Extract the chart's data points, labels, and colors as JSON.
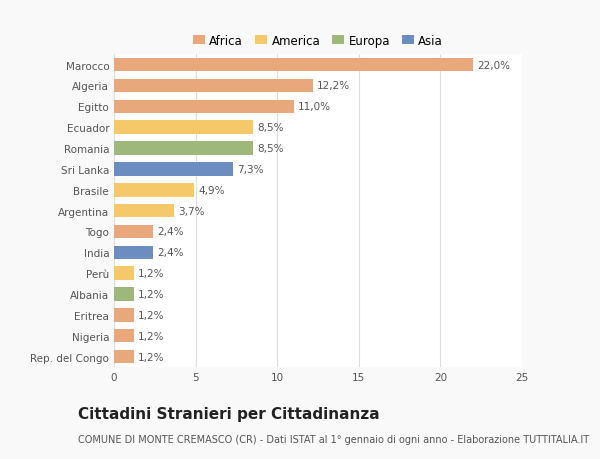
{
  "categories": [
    "Rep. del Congo",
    "Nigeria",
    "Eritrea",
    "Albania",
    "Perù",
    "India",
    "Togo",
    "Argentina",
    "Brasile",
    "Sri Lanka",
    "Romania",
    "Ecuador",
    "Egitto",
    "Algeria",
    "Marocco"
  ],
  "values": [
    1.2,
    1.2,
    1.2,
    1.2,
    1.2,
    2.4,
    2.4,
    3.7,
    4.9,
    7.3,
    8.5,
    8.5,
    11.0,
    12.2,
    22.0
  ],
  "labels": [
    "1,2%",
    "1,2%",
    "1,2%",
    "1,2%",
    "1,2%",
    "2,4%",
    "2,4%",
    "3,7%",
    "4,9%",
    "7,3%",
    "8,5%",
    "8,5%",
    "11,0%",
    "12,2%",
    "22,0%"
  ],
  "colors": [
    "#E8A87C",
    "#E8A87C",
    "#E8A87C",
    "#9DB87A",
    "#F5C96A",
    "#6B8DC0",
    "#E8A87C",
    "#F5C96A",
    "#F5C96A",
    "#6B8DC0",
    "#9DB87A",
    "#F5C96A",
    "#E8A87C",
    "#E8A87C",
    "#E8A87C"
  ],
  "legend_labels": [
    "Africa",
    "America",
    "Europa",
    "Asia"
  ],
  "legend_colors": [
    "#E8A87C",
    "#F5C96A",
    "#9DB87A",
    "#6B8DC0"
  ],
  "title": "Cittadini Stranieri per Cittadinanza",
  "subtitle": "COMUNE DI MONTE CREMASCO (CR) - Dati ISTAT al 1° gennaio di ogni anno - Elaborazione TUTTITALIA.IT",
  "xlim": [
    0,
    25
  ],
  "xticks": [
    0,
    5,
    10,
    15,
    20,
    25
  ],
  "background_color": "#f9f9f9",
  "bar_background": "#ffffff",
  "grid_color": "#dddddd",
  "title_fontsize": 11,
  "subtitle_fontsize": 7,
  "label_fontsize": 7.5,
  "tick_fontsize": 7.5,
  "legend_fontsize": 8.5
}
